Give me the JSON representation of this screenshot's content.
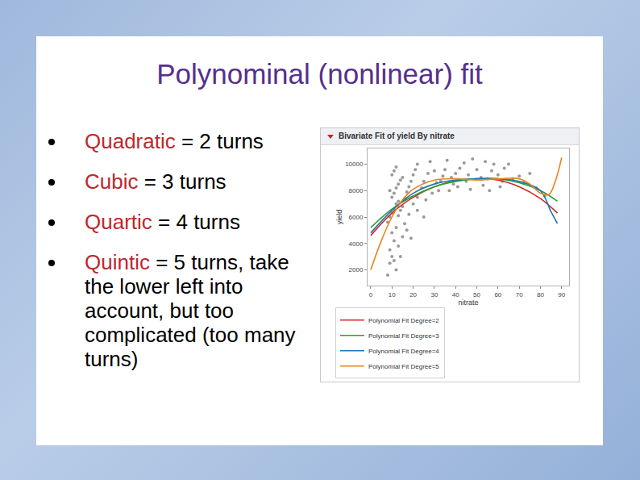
{
  "slide": {
    "title": "Polynominal (nonlinear) fit",
    "bullets": [
      {
        "term": "Quadratic",
        "text": "= 2 turns"
      },
      {
        "term": "Cubic",
        "text": "= 3 turns"
      },
      {
        "term": "Quartic",
        "text": "= 4 turns"
      },
      {
        "term": "Quintic",
        "text": "= 5 turns, take the lower left into account, but too complicated (too many turns)"
      }
    ]
  },
  "chart_data": {
    "type": "scatter",
    "title": "Bivariate Fit of yield By nitrate",
    "x_label": "nitrate",
    "y_label": "yield",
    "xlim": [
      -1.5,
      93.5
    ],
    "ylim": [
      800,
      11200
    ],
    "xticks": [
      0,
      10,
      20,
      30,
      40,
      50,
      60,
      70,
      80,
      90
    ],
    "yticks": [
      2000,
      4000,
      6000,
      8000,
      10000
    ],
    "grid": false,
    "legend": "bottom left",
    "series": [
      {
        "type": "scatter",
        "marker": "circle",
        "color": "#9a9a9a",
        "x": [
          8,
          9,
          10,
          9,
          11,
          10,
          12,
          8,
          9,
          10,
          11,
          12,
          13,
          10,
          11,
          9,
          12,
          13,
          14,
          15,
          10,
          11,
          12,
          13,
          14,
          15,
          16,
          17,
          18,
          19,
          20,
          21,
          22,
          16,
          17,
          14,
          12,
          15,
          18,
          20,
          22,
          24,
          25,
          27,
          28,
          30,
          31,
          32,
          34,
          35,
          36,
          38,
          39,
          40,
          42,
          44,
          45,
          46,
          48,
          50,
          52,
          54,
          55,
          57,
          58,
          60,
          62,
          63,
          65,
          67,
          70,
          72,
          75,
          78,
          82,
          22,
          25,
          26,
          29,
          33,
          37,
          41,
          47,
          53,
          56,
          61,
          19,
          13,
          11
        ],
        "values": [
          1600,
          2500,
          3000,
          3500,
          4200,
          4800,
          5200,
          5600,
          6000,
          6300,
          6600,
          7000,
          7200,
          7500,
          7800,
          8000,
          8200,
          8500,
          8800,
          9000,
          9200,
          9500,
          9800,
          6100,
          6500,
          6800,
          7400,
          7900,
          8300,
          8700,
          9200,
          9600,
          10000,
          5500,
          5000,
          3000,
          2000,
          4500,
          6200,
          7000,
          7500,
          8200,
          8700,
          9300,
          10200,
          9500,
          8600,
          8000,
          9100,
          9600,
          10300,
          9000,
          8500,
          9300,
          9700,
          10100,
          8700,
          9200,
          10400,
          9600,
          9000,
          10200,
          8900,
          9500,
          10000,
          9200,
          8700,
          9700,
          10000,
          8900,
          9100,
          8600,
          9300,
          8200,
          7600,
          6500,
          6000,
          7300,
          7800,
          8700,
          8000,
          8300,
          8100,
          8400,
          8000,
          8300,
          4400,
          3800,
          2700
        ]
      },
      {
        "type": "line",
        "name": "Polynomial Fit Degree=2",
        "color": "#d62728",
        "line_style": "solid",
        "x": [
          0,
          10,
          20,
          30,
          40,
          50,
          60,
          70,
          80,
          88
        ],
        "values": [
          4600,
          6300,
          7500,
          8300,
          8750,
          8900,
          8800,
          8300,
          7400,
          6300
        ]
      },
      {
        "type": "line",
        "name": "Polynomial Fit Degree=3",
        "color": "#2ca02c",
        "line_style": "solid",
        "x": [
          0,
          10,
          20,
          30,
          40,
          50,
          60,
          70,
          80,
          88
        ],
        "values": [
          5200,
          6600,
          7600,
          8300,
          8700,
          8900,
          8900,
          8600,
          8000,
          7200
        ]
      },
      {
        "type": "line",
        "name": "Polynomial Fit Degree=4",
        "color": "#1f77b4",
        "line_style": "solid",
        "x": [
          0,
          10,
          20,
          30,
          40,
          50,
          60,
          70,
          80,
          85,
          88
        ],
        "values": [
          4800,
          6500,
          7800,
          8500,
          8800,
          8900,
          8900,
          8700,
          8000,
          6400,
          5500
        ]
      },
      {
        "type": "line",
        "name": "Polynomial Fit Degree=5",
        "color": "#e8841e",
        "line_style": "solid",
        "x": [
          0,
          5,
          10,
          15,
          20,
          30,
          40,
          50,
          60,
          70,
          75,
          80,
          84,
          87,
          90
        ],
        "values": [
          2000,
          4200,
          6000,
          7300,
          8100,
          8800,
          8900,
          8800,
          8900,
          8900,
          8500,
          7800,
          7700,
          8700,
          10500
        ]
      }
    ]
  }
}
